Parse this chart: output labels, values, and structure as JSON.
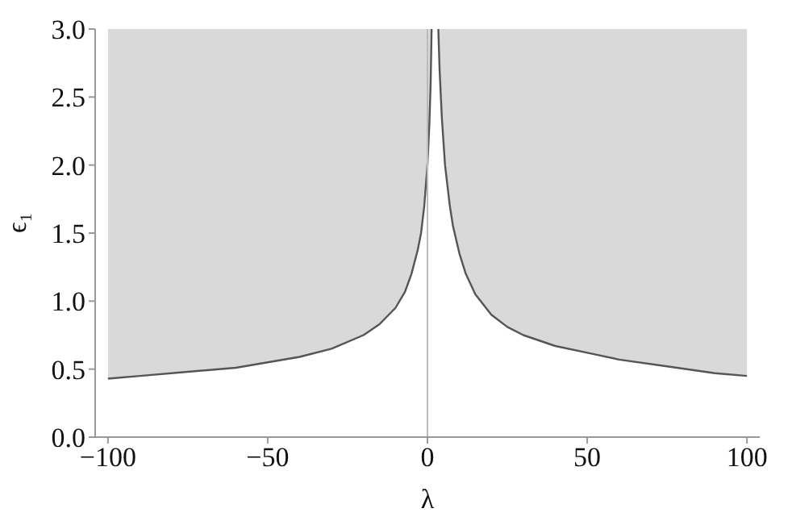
{
  "chart_data": {
    "type": "line",
    "xlabel": "λ",
    "ylabel": "ϵ₁",
    "x": [
      -100,
      -90,
      -75,
      -60,
      -50,
      -40,
      -30,
      -20,
      -15,
      -10,
      -7,
      -5,
      -3,
      -2,
      -1,
      0,
      0.6,
      1,
      1.3,
      2.2,
      3.4,
      3.8,
      4.5,
      5.5,
      7,
      8,
      10,
      12,
      15,
      20,
      25,
      30,
      40,
      50,
      60,
      75,
      90,
      100
    ],
    "series": [
      {
        "color": "#555555",
        "values": [
          0.43,
          0.45,
          0.48,
          0.51,
          0.55,
          0.59,
          0.65,
          0.75,
          0.83,
          0.95,
          1.07,
          1.2,
          1.38,
          1.5,
          1.7,
          2.0,
          2.3,
          2.6,
          3.0,
          null,
          3.0,
          2.7,
          2.35,
          2.0,
          1.7,
          1.55,
          1.35,
          1.2,
          1.05,
          0.9,
          0.81,
          0.75,
          0.67,
          0.62,
          0.57,
          0.52,
          0.47,
          0.45
        ]
      }
    ],
    "xlim": [
      -104,
      104
    ],
    "ylim": [
      0,
      3
    ],
    "xticks": [
      -100,
      -50,
      0,
      50,
      100
    ],
    "yticks": [
      {
        "value": 0,
        "label": "0.0"
      },
      0.5,
      {
        "value": 1,
        "label": "1.0"
      },
      1.5,
      {
        "value": 2,
        "label": "2.0"
      },
      2.5,
      {
        "value": 3,
        "label": "3.0"
      }
    ],
    "ref_lines": [
      {
        "axis": "x",
        "value": 0,
        "color": "#bbbbbb"
      }
    ],
    "grid": false,
    "legend": false
  }
}
